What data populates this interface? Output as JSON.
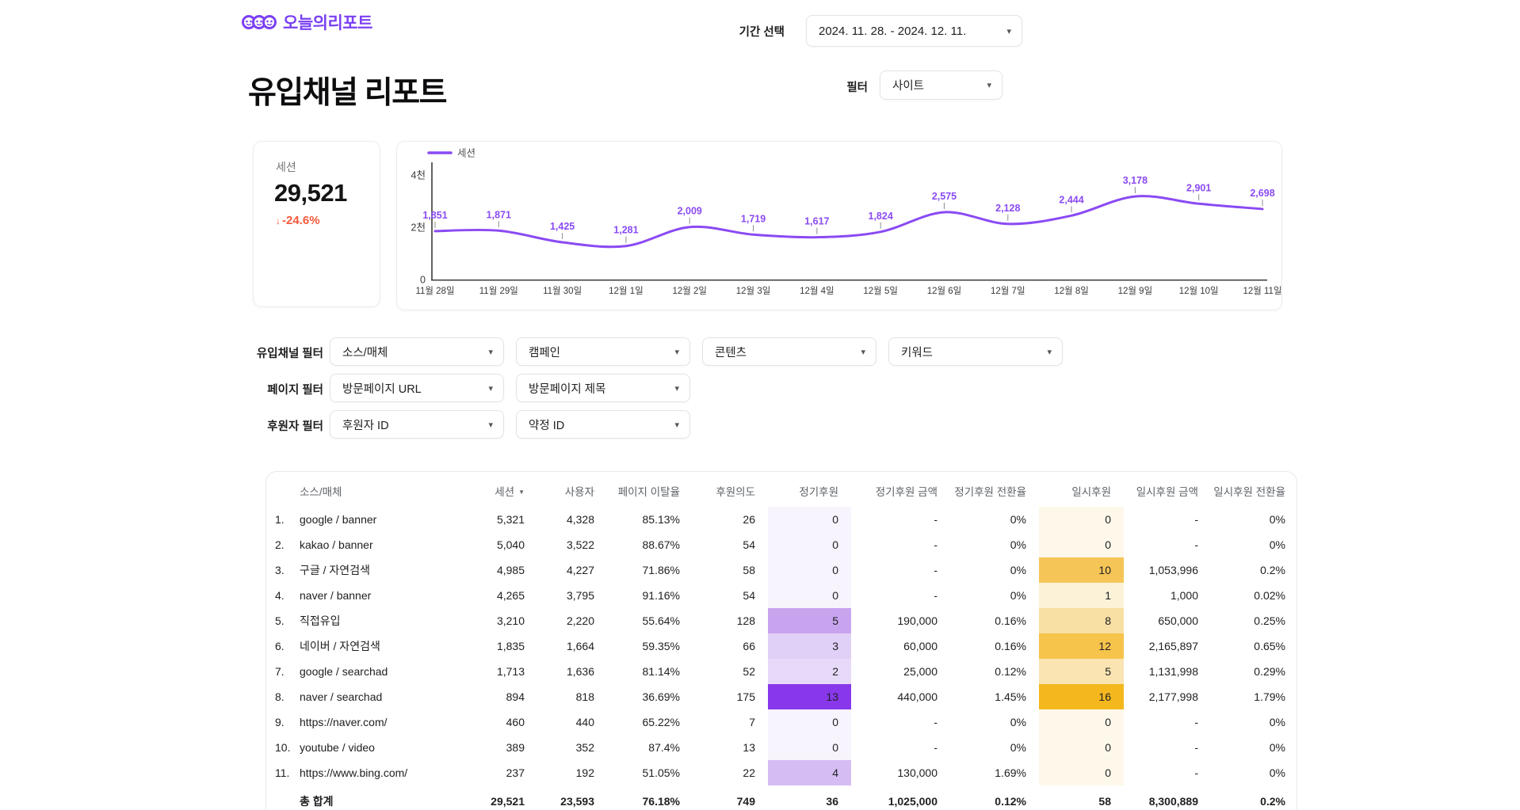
{
  "brand": {
    "name": "오늘의리포트",
    "color": "#7b40f2"
  },
  "icons": {
    "chevron_down": "▾",
    "sort_caret": "▼",
    "down_arrow": "↓"
  },
  "header": {
    "period_label": "기간 선택",
    "period_value": "2024. 11. 28. - 2024. 12. 11.",
    "filter_label": "필터",
    "filter_value": "사이트"
  },
  "page_title": "유입채널 리포트",
  "kpi": {
    "label": "세션",
    "value": "29,521",
    "change": "-24.6%",
    "change_color": "#f4583b"
  },
  "chart_data": {
    "type": "line",
    "legend": "세션",
    "x": [
      "11월 28일",
      "11월 29일",
      "11월 30일",
      "12월 1일",
      "12월 2일",
      "12월 3일",
      "12월 4일",
      "12월 5일",
      "12월 6일",
      "12월 7일",
      "12월 8일",
      "12월 9일",
      "12월 10일",
      "12월 11일"
    ],
    "values": [
      1851,
      1871,
      1425,
      1281,
      2009,
      1719,
      1617,
      1824,
      2575,
      2128,
      2444,
      3178,
      2901,
      2698
    ],
    "point_labels": [
      "1,851",
      "1,871",
      "1,425",
      "1,281",
      "2,009",
      "1,719",
      "1,617",
      "1,824",
      "2,575",
      "2,128",
      "2,444",
      "3,178",
      "2,901",
      "2,698"
    ],
    "y_ticks": [
      {
        "v": 0,
        "label": "0"
      },
      {
        "v": 2000,
        "label": "2천"
      },
      {
        "v": 4000,
        "label": "4천"
      }
    ],
    "ylim": [
      0,
      4400
    ],
    "grid": false,
    "legend_position": "top-left",
    "line_color": "#8a4af3",
    "axis_color": "#3c3c3c",
    "label_color": "#8a4af3"
  },
  "filters": {
    "rows": [
      {
        "label": "유입채널 필터",
        "dropdowns": [
          "소스/매체",
          "캠페인",
          "콘텐츠",
          "키워드"
        ]
      },
      {
        "label": "페이지 필터",
        "dropdowns": [
          "방문페이지 URL",
          "방문페이지 제목"
        ]
      },
      {
        "label": "후원자 필터",
        "dropdowns": [
          "후원자 ID",
          "약정 ID"
        ]
      }
    ]
  },
  "table": {
    "columns": [
      "소스/매체",
      "세션",
      "사용자",
      "페이지 이탈율",
      "후원의도",
      "정기후원",
      "정기후원 금액",
      "정기후원 전환율",
      "일시후원",
      "일시후원 금액",
      "일시후원 전환율"
    ],
    "sorted_col_index": 1,
    "rows": [
      {
        "num": "1.",
        "source": "google / banner",
        "sessions": "5,321",
        "users": "4,328",
        "bounce": "85.13%",
        "intent": "26",
        "regular": "0",
        "regular_amt": "-",
        "regular_cvr": "0%",
        "onetime": "0",
        "onetime_amt": "-",
        "onetime_cvr": "0%",
        "regular_bg": "#f8f4fd",
        "onetime_bg": "#fdf8ea"
      },
      {
        "num": "2.",
        "source": "kakao / banner",
        "sessions": "5,040",
        "users": "3,522",
        "bounce": "88.67%",
        "intent": "54",
        "regular": "0",
        "regular_amt": "-",
        "regular_cvr": "0%",
        "onetime": "0",
        "onetime_amt": "-",
        "onetime_cvr": "0%",
        "regular_bg": "#f8f4fd",
        "onetime_bg": "#fdf8ea"
      },
      {
        "num": "3.",
        "source": "구글 / 자연검색",
        "sessions": "4,985",
        "users": "4,227",
        "bounce": "71.86%",
        "intent": "58",
        "regular": "0",
        "regular_amt": "-",
        "regular_cvr": "0%",
        "onetime": "10",
        "onetime_amt": "1,053,996",
        "onetime_cvr": "0.2%",
        "regular_bg": "#f8f4fd",
        "onetime_bg": "#f6c557"
      },
      {
        "num": "4.",
        "source": "naver / banner",
        "sessions": "4,265",
        "users": "3,795",
        "bounce": "91.16%",
        "intent": "54",
        "regular": "0",
        "regular_amt": "-",
        "regular_cvr": "0%",
        "onetime": "1",
        "onetime_amt": "1,000",
        "onetime_cvr": "0.02%",
        "regular_bg": "#f8f4fd",
        "onetime_bg": "#fcf2d7"
      },
      {
        "num": "5.",
        "source": "직접유입",
        "sessions": "3,210",
        "users": "2,220",
        "bounce": "55.64%",
        "intent": "128",
        "regular": "5",
        "regular_amt": "190,000",
        "regular_cvr": "0.16%",
        "onetime": "8",
        "onetime_amt": "650,000",
        "onetime_cvr": "0.25%",
        "regular_bg": "#c8a4ef",
        "onetime_bg": "#f8dfa3"
      },
      {
        "num": "6.",
        "source": "네이버 / 자연검색",
        "sessions": "1,835",
        "users": "1,664",
        "bounce": "59.35%",
        "intent": "66",
        "regular": "3",
        "regular_amt": "60,000",
        "regular_cvr": "0.16%",
        "onetime": "12",
        "onetime_amt": "2,165,897",
        "onetime_cvr": "0.65%",
        "regular_bg": "#e0d0f7",
        "onetime_bg": "#f6c34b"
      },
      {
        "num": "7.",
        "source": "google / searchad",
        "sessions": "1,713",
        "users": "1,636",
        "bounce": "81.14%",
        "intent": "52",
        "regular": "2",
        "regular_amt": "25,000",
        "regular_cvr": "0.12%",
        "onetime": "5",
        "onetime_amt": "1,131,998",
        "onetime_cvr": "0.29%",
        "regular_bg": "#e7daf9",
        "onetime_bg": "#f9e4b2"
      },
      {
        "num": "8.",
        "source": "naver / searchad",
        "sessions": "894",
        "users": "818",
        "bounce": "36.69%",
        "intent": "175",
        "regular": "13",
        "regular_amt": "440,000",
        "regular_cvr": "1.45%",
        "onetime": "16",
        "onetime_amt": "2,177,998",
        "onetime_cvr": "1.79%",
        "regular_bg": "#8837eb",
        "onetime_bg": "#f4b71e"
      },
      {
        "num": "9.",
        "source": "https://naver.com/",
        "sessions": "460",
        "users": "440",
        "bounce": "65.22%",
        "intent": "7",
        "regular": "0",
        "regular_amt": "-",
        "regular_cvr": "0%",
        "onetime": "0",
        "onetime_amt": "-",
        "onetime_cvr": "0%",
        "regular_bg": "#f8f4fd",
        "onetime_bg": "#fdf8ea"
      },
      {
        "num": "10.",
        "source": "youtube / video",
        "sessions": "389",
        "users": "352",
        "bounce": "87.4%",
        "intent": "13",
        "regular": "0",
        "regular_amt": "-",
        "regular_cvr": "0%",
        "onetime": "0",
        "onetime_amt": "-",
        "onetime_cvr": "0%",
        "regular_bg": "#f8f4fd",
        "onetime_bg": "#fdf8ea"
      },
      {
        "num": "11.",
        "source": "https://www.bing.com/",
        "sessions": "237",
        "users": "192",
        "bounce": "51.05%",
        "intent": "22",
        "regular": "4",
        "regular_amt": "130,000",
        "regular_cvr": "1.69%",
        "onetime": "0",
        "onetime_amt": "-",
        "onetime_cvr": "0%",
        "regular_bg": "#d5bdf4",
        "onetime_bg": "#fdf8ea"
      }
    ],
    "total": {
      "num": "",
      "source": "총 합계",
      "sessions": "29,521",
      "users": "23,593",
      "bounce": "76.18%",
      "intent": "749",
      "regular": "36",
      "regular_amt": "1,025,000",
      "regular_cvr": "0.12%",
      "onetime": "58",
      "onetime_amt": "8,300,889",
      "onetime_cvr": "0.2%"
    }
  }
}
